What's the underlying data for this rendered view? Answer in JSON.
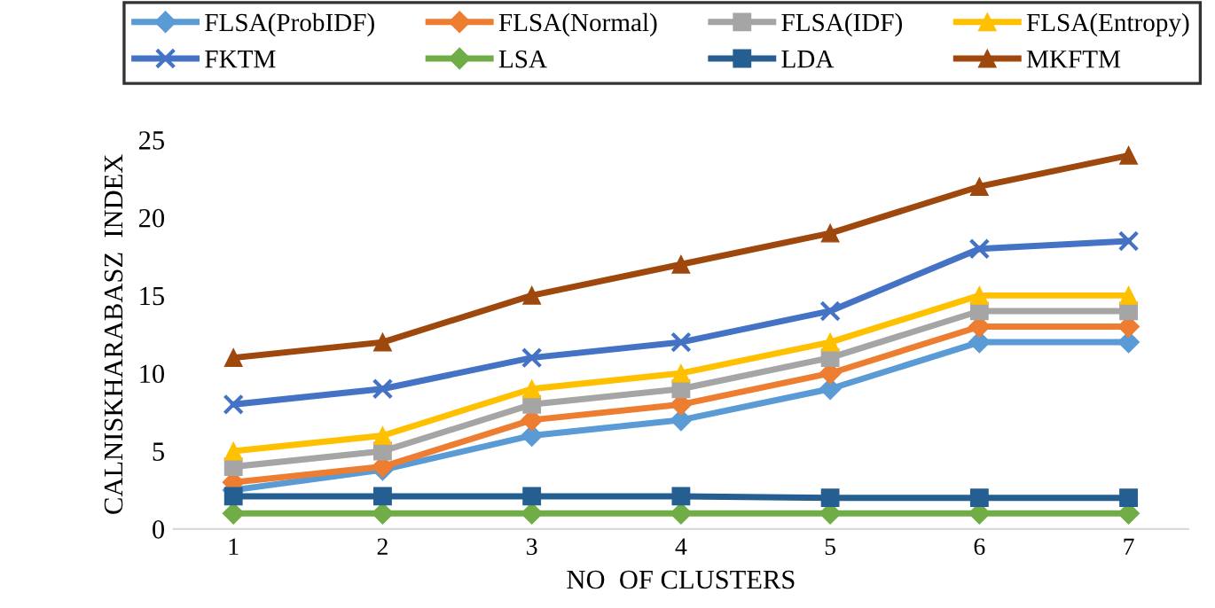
{
  "chart_data": {
    "type": "line",
    "xlabel": "NO  OF CLUSTERS",
    "ylabel": "CALNISKHARABASZ  INDEX",
    "categories": [
      "1",
      "2",
      "3",
      "4",
      "5",
      "6",
      "7"
    ],
    "series": [
      {
        "name": "FLSA(ProbIDF)",
        "color": "#5b9bd5",
        "marker": "diamond",
        "values": [
          2.5,
          3.8,
          6,
          7,
          9,
          12,
          12
        ]
      },
      {
        "name": "FLSA(Normal)",
        "color": "#ed7d31",
        "marker": "diamond",
        "values": [
          3,
          4,
          7,
          8,
          10,
          13,
          13
        ]
      },
      {
        "name": "FLSA(IDF)",
        "color": "#a5a5a5",
        "marker": "square",
        "values": [
          4,
          5,
          8,
          9,
          11,
          14,
          14
        ]
      },
      {
        "name": "FLSA(Entropy)",
        "color": "#ffc000",
        "marker": "triangle",
        "values": [
          5,
          6,
          9,
          10,
          12,
          15,
          15
        ]
      },
      {
        "name": "FKTM",
        "color": "#4472c4",
        "marker": "cross",
        "values": [
          8,
          9,
          11,
          12,
          14,
          18,
          18.5
        ]
      },
      {
        "name": "LSA",
        "color": "#70ad47",
        "marker": "diamond",
        "values": [
          1,
          1,
          1,
          1,
          1,
          1,
          1
        ]
      },
      {
        "name": "LDA",
        "color": "#255e91",
        "marker": "square",
        "values": [
          2.1,
          2.1,
          2.1,
          2.1,
          2,
          2,
          2
        ]
      },
      {
        "name": "MKFTM",
        "color": "#9e480e",
        "marker": "triangle",
        "values": [
          11,
          12,
          15,
          17,
          19,
          22,
          24
        ]
      }
    ],
    "ylim": [
      0,
      25
    ],
    "yticks": [
      0,
      5,
      10,
      15,
      20,
      25
    ],
    "grid": false,
    "legend": "top"
  }
}
